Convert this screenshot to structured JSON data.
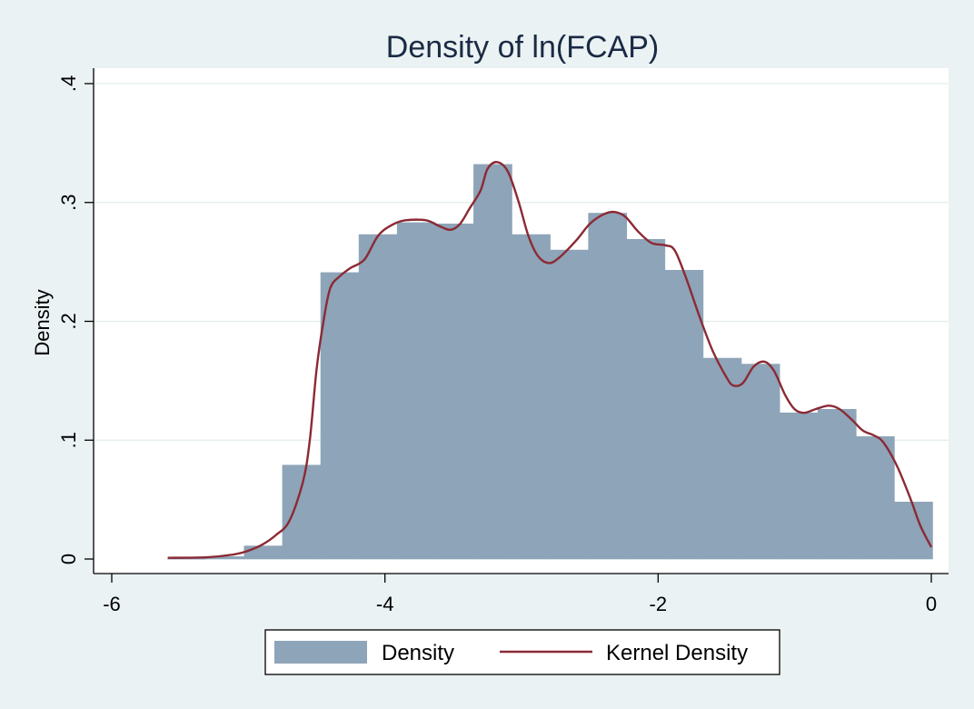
{
  "chart_data": {
    "type": "bar",
    "title": "Density of ln(FCAP)",
    "ylabel": "Density",
    "xlabel": "",
    "xlim": [
      -6.2,
      0.2
    ],
    "ylim": [
      -0.012,
      0.41
    ],
    "x_ticks": [
      {
        "value": -6,
        "label": "-6"
      },
      {
        "value": -4,
        "label": "-4"
      },
      {
        "value": -2,
        "label": "-2"
      },
      {
        "value": 0,
        "label": "0"
      }
    ],
    "y_ticks": [
      {
        "value": 0,
        "label": "0"
      },
      {
        "value": 0.1,
        "label": ".1"
      },
      {
        "value": 0.2,
        "label": ".2"
      },
      {
        "value": 0.3,
        "label": ".3"
      },
      {
        "value": 0.4,
        "label": ".4"
      }
    ],
    "grid": true,
    "legend_position": "bottom",
    "colors": {
      "background": "#eaf2f3",
      "plot_background": "#ffffff",
      "bar_fill": "#8ea4b8",
      "line": "#8b2a35",
      "grid": "#e3ecec",
      "title": "#1a2a44"
    },
    "series": [
      {
        "name": "Density",
        "type": "histogram",
        "bins": [
          {
            "x0": -5.59,
            "x1": -5.31,
            "value": 0.0005
          },
          {
            "x0": -5.31,
            "x1": -5.03,
            "value": 0.002
          },
          {
            "x0": -5.03,
            "x1": -4.75,
            "value": 0.011
          },
          {
            "x0": -4.75,
            "x1": -4.47,
            "value": 0.079
          },
          {
            "x0": -4.47,
            "x1": -4.19,
            "value": 0.241
          },
          {
            "x0": -4.19,
            "x1": -3.91,
            "value": 0.273
          },
          {
            "x0": -3.91,
            "x1": -3.63,
            "value": 0.283
          },
          {
            "x0": -3.63,
            "x1": -3.35,
            "value": 0.282
          },
          {
            "x0": -3.35,
            "x1": -3.07,
            "value": 0.332
          },
          {
            "x0": -3.07,
            "x1": -2.79,
            "value": 0.273
          },
          {
            "x0": -2.79,
            "x1": -2.51,
            "value": 0.26
          },
          {
            "x0": -2.51,
            "x1": -2.23,
            "value": 0.291
          },
          {
            "x0": -2.23,
            "x1": -1.95,
            "value": 0.269
          },
          {
            "x0": -1.95,
            "x1": -1.67,
            "value": 0.243
          },
          {
            "x0": -1.67,
            "x1": -1.39,
            "value": 0.169
          },
          {
            "x0": -1.39,
            "x1": -1.11,
            "value": 0.164
          },
          {
            "x0": -1.11,
            "x1": -0.83,
            "value": 0.123
          },
          {
            "x0": -0.83,
            "x1": -0.55,
            "value": 0.126
          },
          {
            "x0": -0.55,
            "x1": -0.27,
            "value": 0.103
          },
          {
            "x0": -0.27,
            "x1": 0.01,
            "value": 0.048
          }
        ]
      },
      {
        "name": "Kernel Density",
        "type": "line",
        "points": [
          [
            -5.59,
            0.001
          ],
          [
            -5.3,
            0.0015
          ],
          [
            -5.1,
            0.004
          ],
          [
            -5.0,
            0.007
          ],
          [
            -4.9,
            0.012
          ],
          [
            -4.8,
            0.02
          ],
          [
            -4.7,
            0.032
          ],
          [
            -4.6,
            0.065
          ],
          [
            -4.55,
            0.1
          ],
          [
            -4.5,
            0.16
          ],
          [
            -4.45,
            0.2
          ],
          [
            -4.4,
            0.228
          ],
          [
            -4.33,
            0.238
          ],
          [
            -4.25,
            0.245
          ],
          [
            -4.15,
            0.252
          ],
          [
            -4.05,
            0.272
          ],
          [
            -3.95,
            0.281
          ],
          [
            -3.85,
            0.285
          ],
          [
            -3.7,
            0.285
          ],
          [
            -3.6,
            0.28
          ],
          [
            -3.52,
            0.277
          ],
          [
            -3.45,
            0.282
          ],
          [
            -3.38,
            0.295
          ],
          [
            -3.3,
            0.31
          ],
          [
            -3.25,
            0.328
          ],
          [
            -3.18,
            0.334
          ],
          [
            -3.1,
            0.326
          ],
          [
            -3.02,
            0.3
          ],
          [
            -2.95,
            0.272
          ],
          [
            -2.88,
            0.255
          ],
          [
            -2.8,
            0.249
          ],
          [
            -2.72,
            0.254
          ],
          [
            -2.6,
            0.268
          ],
          [
            -2.5,
            0.282
          ],
          [
            -2.4,
            0.29
          ],
          [
            -2.32,
            0.292
          ],
          [
            -2.24,
            0.288
          ],
          [
            -2.15,
            0.276
          ],
          [
            -2.05,
            0.266
          ],
          [
            -1.95,
            0.264
          ],
          [
            -1.88,
            0.26
          ],
          [
            -1.8,
            0.238
          ],
          [
            -1.7,
            0.205
          ],
          [
            -1.6,
            0.175
          ],
          [
            -1.5,
            0.153
          ],
          [
            -1.45,
            0.146
          ],
          [
            -1.38,
            0.148
          ],
          [
            -1.3,
            0.162
          ],
          [
            -1.22,
            0.166
          ],
          [
            -1.15,
            0.158
          ],
          [
            -1.07,
            0.138
          ],
          [
            -1.0,
            0.126
          ],
          [
            -0.93,
            0.123
          ],
          [
            -0.85,
            0.126
          ],
          [
            -0.75,
            0.129
          ],
          [
            -0.67,
            0.126
          ],
          [
            -0.58,
            0.117
          ],
          [
            -0.5,
            0.108
          ],
          [
            -0.42,
            0.104
          ],
          [
            -0.35,
            0.098
          ],
          [
            -0.25,
            0.078
          ],
          [
            -0.15,
            0.05
          ],
          [
            -0.08,
            0.028
          ],
          [
            0.0,
            0.01
          ]
        ]
      }
    ]
  }
}
